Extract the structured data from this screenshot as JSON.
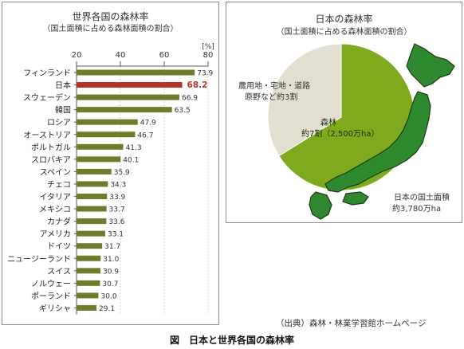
{
  "bar_panel": {
    "title": "世界各国の森林率",
    "subtitle": "（国土面積に占める森林面積の割合）"
  },
  "pie_panel": {
    "title": "日本の森林率",
    "subtitle": "（国土面積に占める森林面積の割合）",
    "forest_label_1": "森林",
    "forest_label_2": "約7割（2,500万ha）",
    "other_label_1": "農用地・宅地・道路",
    "other_label_2": "原野など約3割",
    "area_label_1": "日本の国土面積",
    "area_label_2": "約3,780万ha"
  },
  "source": "（出典）森林・林業学習館ホームページ",
  "caption": "図　日本と世界各国の森林率",
  "colors": {
    "bar": "#6e7d2c",
    "highlight_bar": "#b5342a",
    "highlight_text": "#b5342a",
    "forest": "#7faa1e",
    "other": "#e2dfd0",
    "map_fill": "#2f8a2f"
  },
  "chart_data": [
    {
      "type": "bar",
      "orientation": "horizontal",
      "title": "世界各国の森林率",
      "subtitle": "（国土面積に占める森林面積の割合）",
      "unit": "[%]",
      "xlim": [
        20,
        80
      ],
      "xticks": [
        20,
        40,
        60,
        80
      ],
      "highlight": "日本",
      "categories": [
        "フィンランド",
        "日本",
        "スウェーデン",
        "韓国",
        "ロシア",
        "オーストリア",
        "ポルトガル",
        "スロバキア",
        "スペイン",
        "チェコ",
        "イタリア",
        "メキシコ",
        "カナダ",
        "アメリカ",
        "ドイツ",
        "ニュージーランド",
        "スイス",
        "ノルウェー",
        "ポーランド",
        "ギリシャ"
      ],
      "values": [
        73.9,
        68.2,
        66.9,
        63.5,
        47.9,
        46.7,
        41.3,
        40.1,
        35.9,
        34.3,
        33.9,
        33.7,
        33.6,
        33.1,
        31.7,
        31.0,
        30.9,
        30.7,
        30.0,
        29.1
      ],
      "value_labels": [
        "73.9",
        "68.2",
        "66.9",
        "63.5",
        "47.9",
        "46.7",
        "41.3",
        "40.1",
        "35.9",
        "34.3",
        "33.9",
        "33.7",
        "33.6",
        "33.1",
        "31.7",
        "31.0",
        "30.9",
        "30.7",
        "30.0",
        "29.1"
      ]
    },
    {
      "type": "pie",
      "title": "日本の森林率",
      "slices": [
        {
          "label": "森林 約7割（2,500万ha）",
          "value": 2500
        },
        {
          "label": "農用地・宅地・道路 原野など約3割",
          "value": 1280
        }
      ]
    }
  ]
}
